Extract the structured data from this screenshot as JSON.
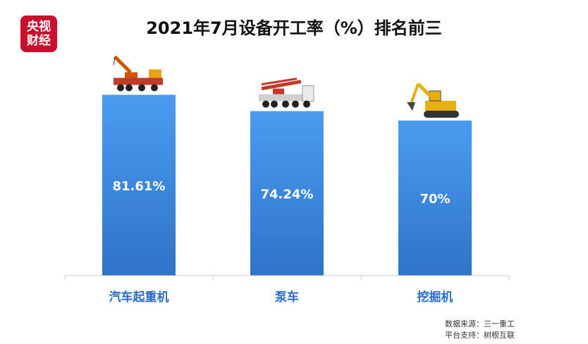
{
  "logo": {
    "line1": "央视",
    "line2": "财经"
  },
  "chart_data": {
    "type": "bar",
    "title": "2021年7月设备开工率（%）排名前三",
    "categories": [
      "汽车起重机",
      "泵车",
      "挖掘机"
    ],
    "values": [
      81.61,
      74.24,
      70
    ],
    "value_labels": [
      "81.61%",
      "74.24%",
      "70%"
    ],
    "icons": [
      "crane-truck-icon",
      "concrete-pump-truck-icon",
      "excavator-icon"
    ],
    "bar_color": "#3d8ee0",
    "label_color": "#2b6cc4"
  },
  "source": {
    "line1": "数据来源：三一重工",
    "line2": "平台支持：树根互联"
  }
}
